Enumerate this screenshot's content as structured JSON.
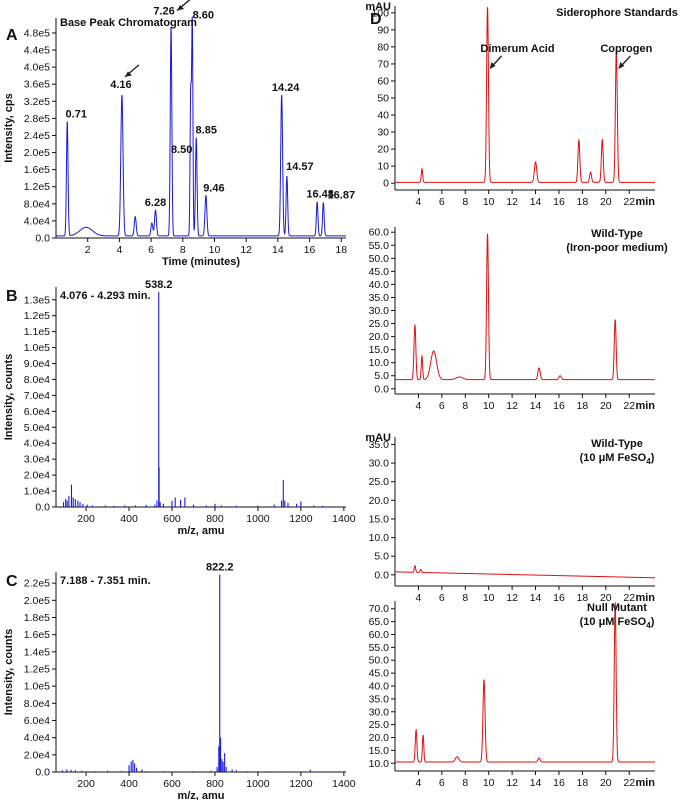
{
  "chart_data": [
    {
      "id": "A",
      "panel_letter": "A",
      "type": "line",
      "title": "Base Peak Chromatogram",
      "xlabel": "Time (minutes)",
      "ylabel": "Intensity, cps",
      "xlim": [
        0,
        18.3
      ],
      "ylim": [
        0,
        515000.0
      ],
      "x_ticks": [
        2,
        4,
        6,
        8,
        10,
        12,
        14,
        16,
        18
      ],
      "y_ticks": [
        0,
        40000,
        80000,
        120000,
        160000,
        200000,
        240000,
        280000,
        320000,
        360000,
        400000,
        440000,
        480000
      ],
      "y_tick_labels": [
        "0.0",
        "4.0e4",
        "8.0e4",
        "1.2e5",
        "1.6e5",
        "2.0e5",
        "2.4e5",
        "2.8e5",
        "3.2e5",
        "3.6e5",
        "4.0e5",
        "4.4e5",
        "4.8e5"
      ],
      "color": "#1a1adb",
      "baseline": 5000,
      "peaks": [
        {
          "x": 0.71,
          "y": 268000,
          "w": 0.05,
          "label": "0.71"
        },
        {
          "x": 1.9,
          "y": 20000,
          "w": 0.4
        },
        {
          "x": 4.16,
          "y": 330000,
          "w": 0.07,
          "label": "4.16"
        },
        {
          "x": 5.0,
          "y": 45000,
          "w": 0.06
        },
        {
          "x": 6.05,
          "y": 30000,
          "w": 0.06
        },
        {
          "x": 6.28,
          "y": 60000,
          "w": 0.06,
          "label": "6.28"
        },
        {
          "x": 7.26,
          "y": 490000,
          "w": 0.05,
          "label": "7.26"
        },
        {
          "x": 8.5,
          "y": 330000,
          "w": 0.04,
          "label": "8.50"
        },
        {
          "x": 8.6,
          "y": 500000,
          "w": 0.04,
          "label": "8.60"
        },
        {
          "x": 8.85,
          "y": 230000,
          "w": 0.05,
          "label": "8.85"
        },
        {
          "x": 9.46,
          "y": 95000,
          "w": 0.06,
          "label": "9.46"
        },
        {
          "x": 14.24,
          "y": 330000,
          "w": 0.06,
          "label": "14.24"
        },
        {
          "x": 14.57,
          "y": 140000,
          "w": 0.05,
          "label": "14.57"
        },
        {
          "x": 16.48,
          "y": 80000,
          "w": 0.05,
          "label": "16.48"
        },
        {
          "x": 16.87,
          "y": 78000,
          "w": 0.05,
          "label": "16.87"
        }
      ],
      "arrows_at": [
        4.16,
        7.26
      ]
    },
    {
      "id": "B",
      "panel_letter": "B",
      "type": "bar",
      "title": "4.076 - 4.293 min.",
      "xlabel": "m/z, amu",
      "ylabel": "Intensity, counts",
      "xlim": [
        60,
        1410
      ],
      "ylim": [
        0,
        138000.0
      ],
      "x_ticks": [
        200,
        400,
        600,
        800,
        1000,
        1200,
        1400
      ],
      "y_ticks": [
        0,
        10000,
        20000,
        30000,
        40000,
        50000,
        60000,
        70000,
        80000,
        90000,
        100000,
        110000,
        120000,
        130000
      ],
      "y_tick_labels": [
        "0.0",
        "1.0e4",
        "2.0e4",
        "3.0e4",
        "4.0e4",
        "5.0e4",
        "6.0e4",
        "7.0e4",
        "8.0e4",
        "9.0e4",
        "1.0e5",
        "1.1e5",
        "1.2e5",
        "1.3e5"
      ],
      "color": "#1a1adb",
      "peaks": [
        {
          "x": 95,
          "y": 3000
        },
        {
          "x": 105,
          "y": 5000
        },
        {
          "x": 112,
          "y": 4000
        },
        {
          "x": 120,
          "y": 7000
        },
        {
          "x": 132,
          "y": 14000
        },
        {
          "x": 140,
          "y": 6000
        },
        {
          "x": 150,
          "y": 5000
        },
        {
          "x": 162,
          "y": 4000
        },
        {
          "x": 172,
          "y": 3000
        },
        {
          "x": 185,
          "y": 2000
        },
        {
          "x": 205,
          "y": 1500
        },
        {
          "x": 230,
          "y": 1000
        },
        {
          "x": 290,
          "y": 1000
        },
        {
          "x": 330,
          "y": 800
        },
        {
          "x": 380,
          "y": 1000
        },
        {
          "x": 430,
          "y": 1000
        },
        {
          "x": 480,
          "y": 1200
        },
        {
          "x": 520,
          "y": 1500
        },
        {
          "x": 530,
          "y": 4000
        },
        {
          "x": 538.2,
          "y": 135000,
          "label": "538.2"
        },
        {
          "x": 540,
          "y": 25000
        },
        {
          "x": 545,
          "y": 3000
        },
        {
          "x": 560,
          "y": 2000
        },
        {
          "x": 600,
          "y": 4000
        },
        {
          "x": 615,
          "y": 6000
        },
        {
          "x": 640,
          "y": 4500
        },
        {
          "x": 660,
          "y": 6000
        },
        {
          "x": 700,
          "y": 1500
        },
        {
          "x": 760,
          "y": 1000
        },
        {
          "x": 800,
          "y": 2000
        },
        {
          "x": 830,
          "y": 1000
        },
        {
          "x": 900,
          "y": 800
        },
        {
          "x": 1000,
          "y": 800
        },
        {
          "x": 1076,
          "y": 1500
        },
        {
          "x": 1110,
          "y": 4000
        },
        {
          "x": 1118,
          "y": 17000
        },
        {
          "x": 1125,
          "y": 4000
        },
        {
          "x": 1140,
          "y": 2500
        },
        {
          "x": 1180,
          "y": 2000
        },
        {
          "x": 1200,
          "y": 3500
        },
        {
          "x": 1260,
          "y": 1000
        },
        {
          "x": 1300,
          "y": 800
        }
      ]
    },
    {
      "id": "C",
      "panel_letter": "C",
      "type": "bar",
      "title": "7.188 - 7.351 min.",
      "xlabel": "m/z, amu",
      "ylabel": "Intensity, counts",
      "xlim": [
        60,
        1410
      ],
      "ylim": [
        0,
        233000.0
      ],
      "x_ticks": [
        200,
        400,
        600,
        800,
        1000,
        1200,
        1400
      ],
      "y_ticks": [
        0,
        20000,
        40000,
        60000,
        80000,
        100000,
        120000,
        140000,
        160000,
        180000,
        200000,
        220000
      ],
      "y_tick_labels": [
        "0.0",
        "2.0e4",
        "4.0e4",
        "6.0e4",
        "8.0e4",
        "1.0e5",
        "1.2e5",
        "1.4e5",
        "1.6e5",
        "1.8e5",
        "2.0e5",
        "2.2e5"
      ],
      "color": "#1a1adb",
      "peaks": [
        {
          "x": 90,
          "y": 2000
        },
        {
          "x": 110,
          "y": 3000
        },
        {
          "x": 130,
          "y": 2500
        },
        {
          "x": 150,
          "y": 2000
        },
        {
          "x": 180,
          "y": 1500
        },
        {
          "x": 240,
          "y": 1000
        },
        {
          "x": 300,
          "y": 1500
        },
        {
          "x": 360,
          "y": 1000
        },
        {
          "x": 400,
          "y": 8000
        },
        {
          "x": 410,
          "y": 12000
        },
        {
          "x": 418,
          "y": 14000
        },
        {
          "x": 426,
          "y": 10000
        },
        {
          "x": 435,
          "y": 5000
        },
        {
          "x": 460,
          "y": 3000
        },
        {
          "x": 480,
          "y": 1000
        },
        {
          "x": 560,
          "y": 1000
        },
        {
          "x": 620,
          "y": 800
        },
        {
          "x": 700,
          "y": 1000
        },
        {
          "x": 780,
          "y": 1500
        },
        {
          "x": 810,
          "y": 6000
        },
        {
          "x": 818,
          "y": 30000
        },
        {
          "x": 822.2,
          "y": 230000,
          "label": "822.2"
        },
        {
          "x": 826,
          "y": 40000
        },
        {
          "x": 832,
          "y": 15000
        },
        {
          "x": 838,
          "y": 12000
        },
        {
          "x": 845,
          "y": 22000
        },
        {
          "x": 852,
          "y": 6000
        },
        {
          "x": 880,
          "y": 3000
        },
        {
          "x": 900,
          "y": 2000
        },
        {
          "x": 950,
          "y": 1000
        },
        {
          "x": 1040,
          "y": 1000
        },
        {
          "x": 1120,
          "y": 800
        },
        {
          "x": 1244,
          "y": 2500
        },
        {
          "x": 1300,
          "y": 800
        }
      ]
    },
    {
      "id": "D1",
      "panel_letter": "D",
      "type": "line",
      "title": "Siderophore Standards",
      "unit_label": "mAU",
      "x_unit": "min",
      "xlim": [
        2,
        24.2
      ],
      "ylim": [
        -4,
        104
      ],
      "x_ticks": [
        4,
        6,
        8,
        10,
        12,
        14,
        16,
        18,
        20,
        22
      ],
      "y_ticks": [
        0,
        10,
        20,
        30,
        40,
        50,
        60,
        70,
        80,
        90,
        100
      ],
      "y_tick_labels": [
        "0",
        "10",
        "20",
        "30",
        "40",
        "50",
        "60",
        "70",
        "80",
        "90",
        "100"
      ],
      "color": "#dd1111",
      "baseline": 0.5,
      "peaks": [
        {
          "x": 4.3,
          "y": 8,
          "w": 0.06
        },
        {
          "x": 9.9,
          "y": 103,
          "w": 0.08
        },
        {
          "x": 14.0,
          "y": 12,
          "w": 0.1
        },
        {
          "x": 17.7,
          "y": 25,
          "w": 0.08
        },
        {
          "x": 18.7,
          "y": 6,
          "w": 0.08
        },
        {
          "x": 19.7,
          "y": 25,
          "w": 0.08
        },
        {
          "x": 20.9,
          "y": 78,
          "w": 0.08
        }
      ],
      "annotations": [
        {
          "text": "Dimerum Acid",
          "at_x": 9.9
        },
        {
          "text": "Coprogen",
          "at_x": 20.9
        }
      ]
    },
    {
      "id": "D2",
      "type": "line",
      "title": "Wild-Type",
      "subtitle": "(Iron-poor medium)",
      "xlim": [
        2,
        24.2
      ],
      "ylim": [
        -2,
        62
      ],
      "x_ticks": [
        4,
        6,
        8,
        10,
        12,
        14,
        16,
        18,
        20,
        22
      ],
      "y_ticks": [
        0,
        5,
        10,
        15,
        20,
        25,
        30,
        35,
        40,
        45,
        50,
        55,
        60
      ],
      "y_tick_labels": [
        "0.0",
        "5.0",
        "10.0",
        "15.0",
        "20.0",
        "25.0",
        "30.0",
        "35.0",
        "40.0",
        "45.0",
        "50.0",
        "55.0",
        "60.0"
      ],
      "x_unit": "min",
      "color": "#dd1111",
      "baseline": 3.5,
      "peaks": [
        {
          "x": 3.7,
          "y": 21,
          "w": 0.08
        },
        {
          "x": 4.3,
          "y": 9,
          "w": 0.06
        },
        {
          "x": 5.3,
          "y": 11,
          "w": 0.25
        },
        {
          "x": 7.5,
          "y": 1,
          "w": 0.3
        },
        {
          "x": 9.9,
          "y": 56,
          "w": 0.08
        },
        {
          "x": 14.3,
          "y": 4.5,
          "w": 0.1
        },
        {
          "x": 16.1,
          "y": 1.5,
          "w": 0.1
        },
        {
          "x": 20.8,
          "y": 23,
          "w": 0.08
        }
      ]
    },
    {
      "id": "D3",
      "type": "line",
      "title": "Wild-Type",
      "subtitle_prefix": "(10 μM FeSO",
      "subtitle_sub": "4",
      "subtitle_suffix": ")",
      "unit_label": "mAU",
      "x_unit": "min",
      "xlim": [
        2,
        24.2
      ],
      "ylim": [
        -3,
        37
      ],
      "x_ticks": [
        4,
        6,
        8,
        10,
        12,
        14,
        16,
        18,
        20,
        22
      ],
      "y_ticks": [
        0,
        5,
        10,
        15,
        20,
        25,
        30,
        35
      ],
      "y_tick_labels": [
        "0.0",
        "5.0",
        "10.0",
        "15.0",
        "20.0",
        "25.0",
        "30.0",
        "35.0"
      ],
      "color": "#dd1111",
      "baseline": 0.8,
      "baseline_end": -0.8,
      "peaks": [
        {
          "x": 3.7,
          "y": 1.8,
          "w": 0.06
        },
        {
          "x": 4.2,
          "y": 0.8,
          "w": 0.06
        }
      ]
    },
    {
      "id": "D4",
      "type": "line",
      "title": "Null Mutant",
      "subtitle_prefix": "(10 μM FeSO",
      "subtitle_sub": "4",
      "subtitle_suffix": ")",
      "x_unit": "min",
      "xlim": [
        2,
        24.2
      ],
      "ylim": [
        7,
        73
      ],
      "x_ticks": [
        4,
        6,
        8,
        10,
        12,
        14,
        16,
        18,
        20,
        22
      ],
      "y_ticks": [
        10,
        15,
        20,
        25,
        30,
        35,
        40,
        45,
        50,
        55,
        60,
        65,
        70
      ],
      "y_tick_labels": [
        "10.0",
        "15.0",
        "20.0",
        "25.0",
        "30.0",
        "35.0",
        "40.0",
        "45.0",
        "50.0",
        "55.0",
        "60.0",
        "65.0",
        "70.0"
      ],
      "color": "#dd1111",
      "baseline": 10.5,
      "peaks": [
        {
          "x": 3.8,
          "y": 12.5,
          "w": 0.07
        },
        {
          "x": 4.4,
          "y": 10.5,
          "w": 0.06
        },
        {
          "x": 7.3,
          "y": 2,
          "w": 0.15
        },
        {
          "x": 9.6,
          "y": 32,
          "w": 0.09
        },
        {
          "x": 14.3,
          "y": 1.5,
          "w": 0.1
        },
        {
          "x": 20.8,
          "y": 62,
          "w": 0.08
        }
      ]
    }
  ]
}
